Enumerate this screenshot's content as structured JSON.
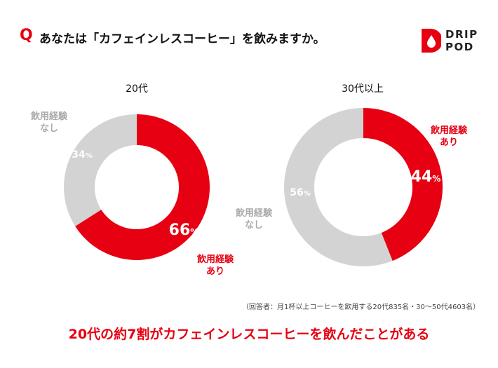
{
  "header": {
    "q_mark": "Q",
    "question": "あなたは「カフェインレスコーヒー」を飲みますか。"
  },
  "logo": {
    "line1": "DRIP",
    "line2": "POD",
    "color": "#e60012"
  },
  "colors": {
    "accent": "#e60012",
    "neutral": "#d3d3d3",
    "neutral_text": "#aaaaaa"
  },
  "chart_data": [
    {
      "type": "pie",
      "title": "20代",
      "slices": [
        {
          "label": "飲用経験あり",
          "label_lines": [
            "飲用経験",
            "あり"
          ],
          "value": 66,
          "pct_num": "66",
          "pct_sym": "%"
        },
        {
          "label": "飲用経験なし",
          "label_lines": [
            "飲用経験",
            "なし"
          ],
          "value": 34,
          "pct_num": "34",
          "pct_sym": "%"
        }
      ]
    },
    {
      "type": "pie",
      "title": "30代以上",
      "slices": [
        {
          "label": "飲用経験あり",
          "label_lines": [
            "飲用経験",
            "あり"
          ],
          "value": 44,
          "pct_num": "44",
          "pct_sym": "%"
        },
        {
          "label": "飲用経験なし",
          "label_lines": [
            "飲用経験",
            "なし"
          ],
          "value": 56,
          "pct_num": "56",
          "pct_sym": "%"
        }
      ]
    }
  ],
  "footnote": "（回答者：月1杯以上コーヒーを飲用する20代835名・30〜50代4603名）",
  "conclusion": "20代の約7割がカフェインレスコーヒーを飲んだことがある"
}
